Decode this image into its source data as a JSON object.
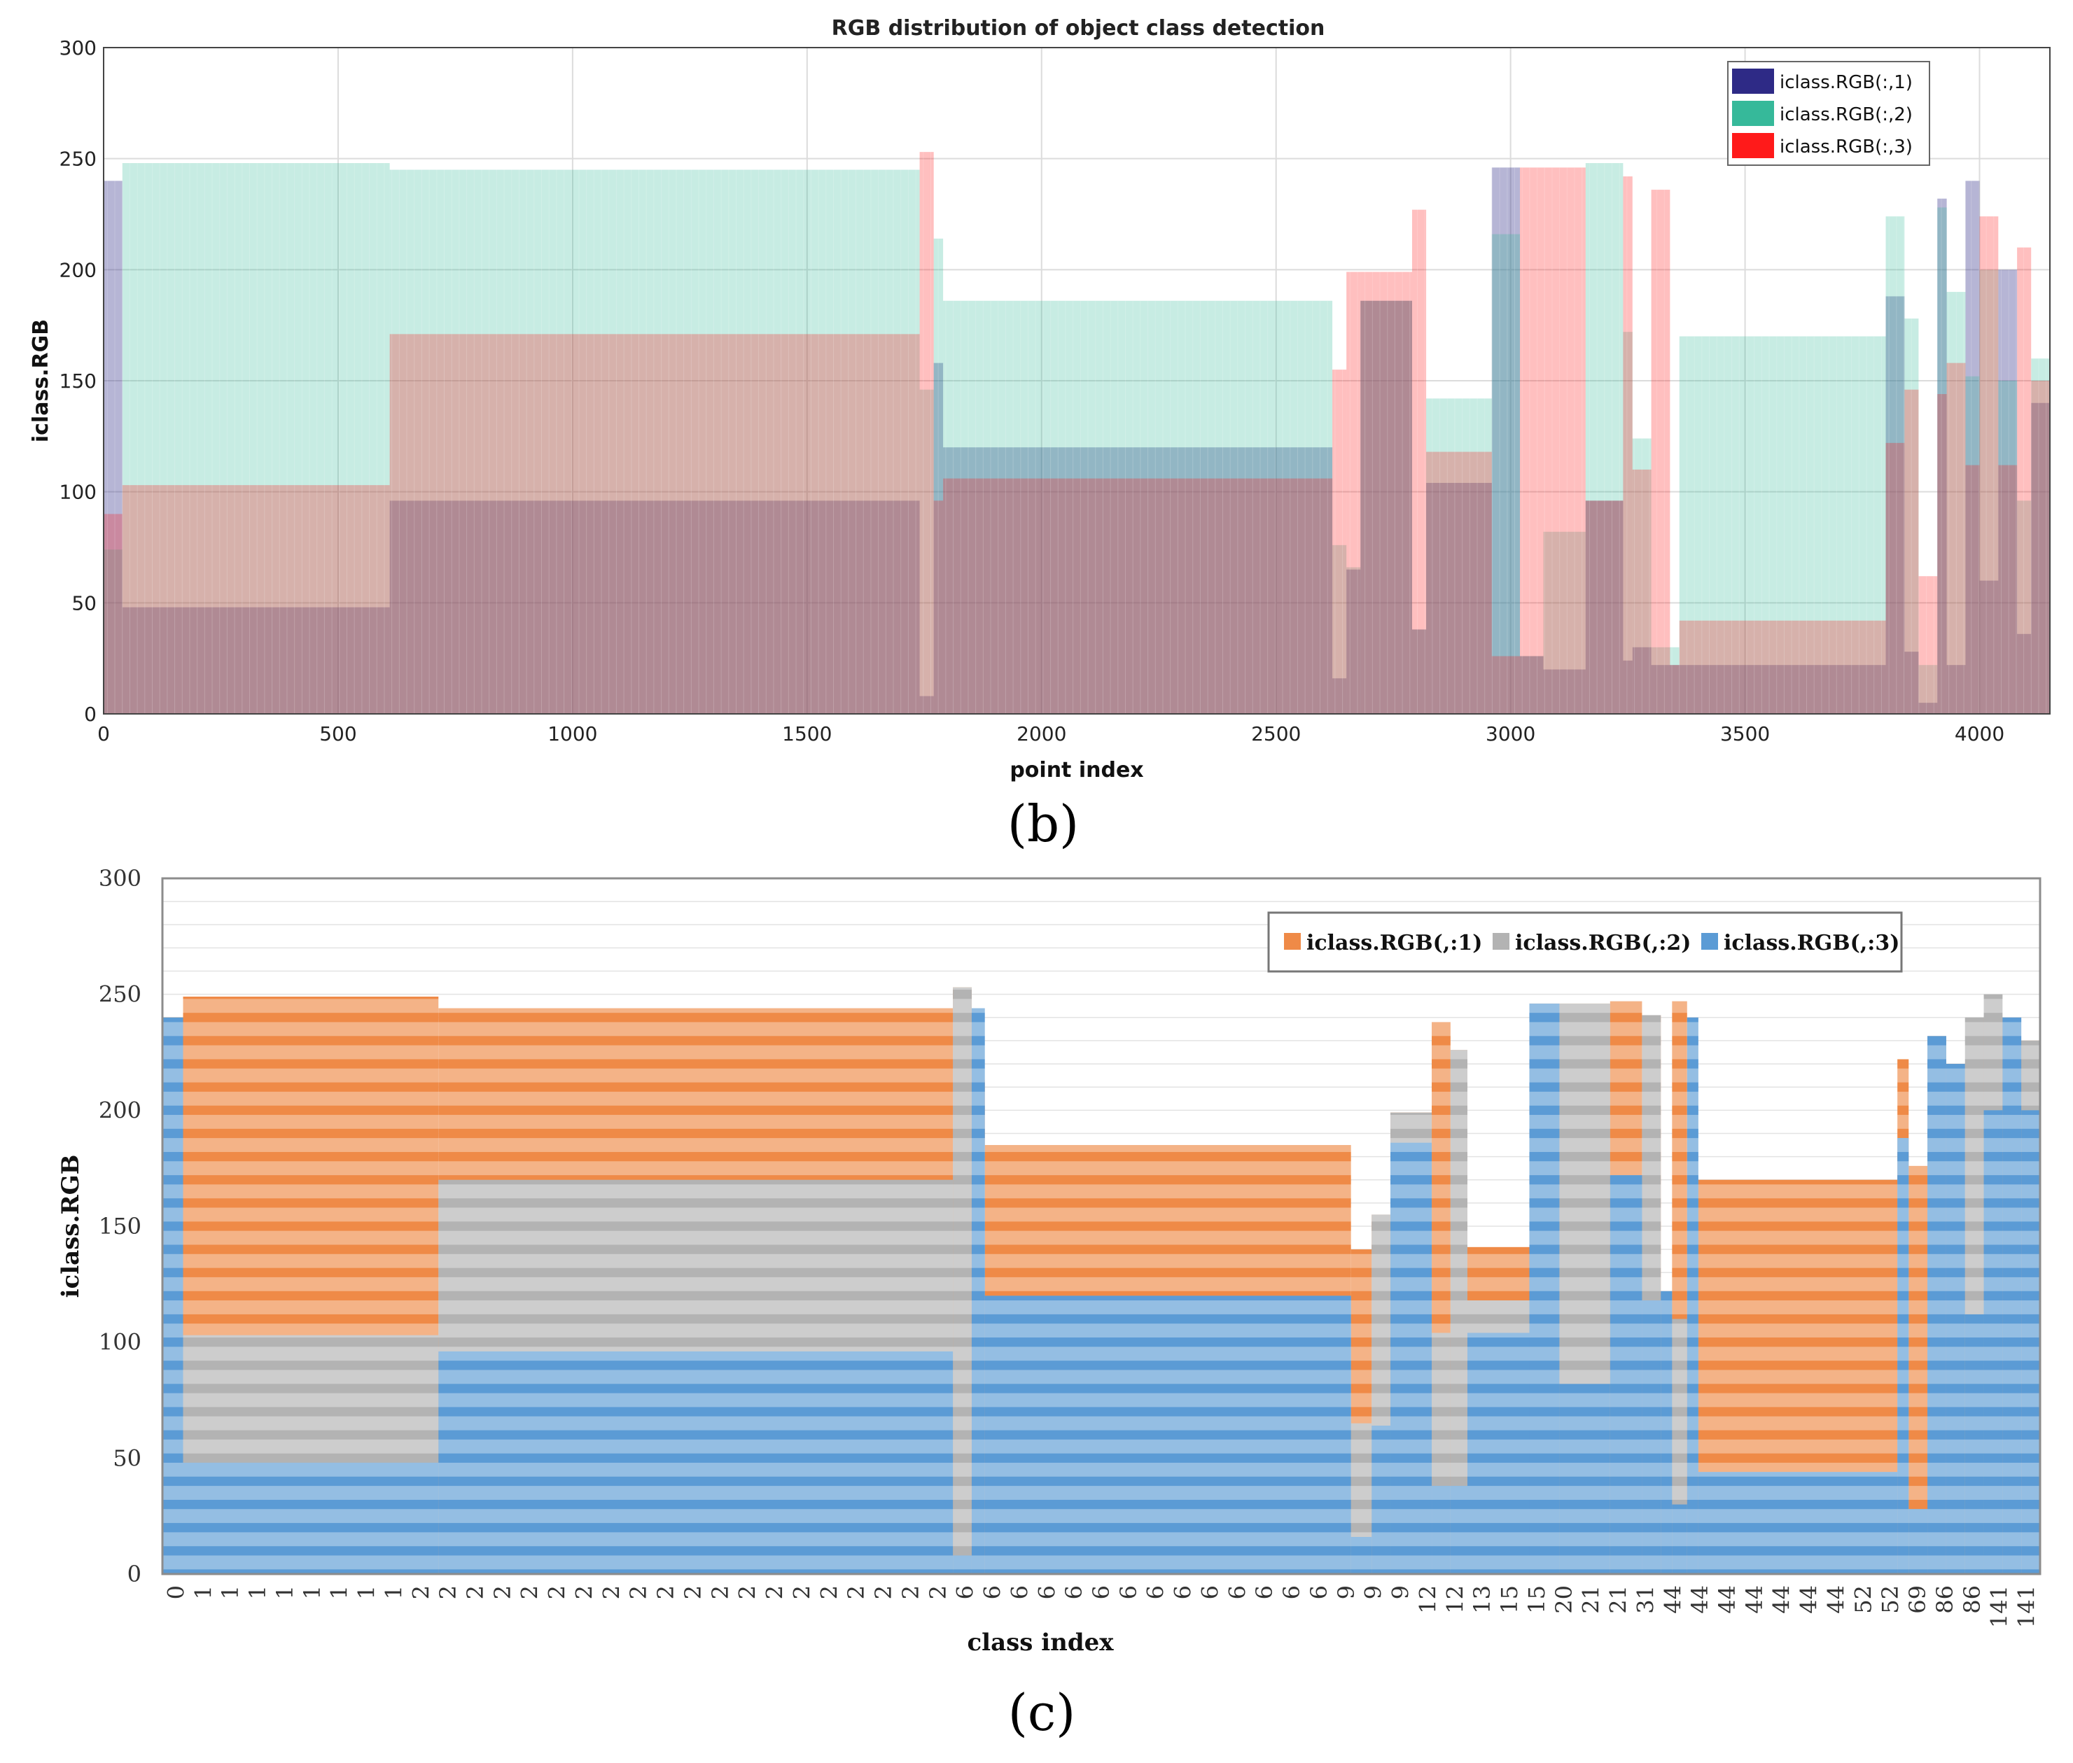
{
  "chart_data": [
    {
      "panel_label": "(b)",
      "type": "bar",
      "title": "RGB distribution of object class detection",
      "xlabel": "point index",
      "ylabel": "iclass.RGB",
      "xlim": [
        0,
        4150
      ],
      "ylim": [
        0,
        300
      ],
      "xticks": [
        0,
        500,
        1000,
        1500,
        2000,
        2500,
        3000,
        3500,
        4000
      ],
      "yticks": [
        0,
        50,
        100,
        150,
        200,
        250,
        300
      ],
      "grid": true,
      "legend_position": "top-right",
      "series": [
        {
          "name": "iclass.RGB(:,1)",
          "color": "#2e2a86",
          "segments": [
            [
              0,
              40,
              240
            ],
            [
              40,
              610,
              48
            ],
            [
              610,
              1740,
              96
            ],
            [
              1740,
              1770,
              8
            ],
            [
              1770,
              1790,
              158
            ],
            [
              1790,
              2620,
              120
            ],
            [
              2620,
              2650,
              16
            ],
            [
              2650,
              2680,
              65
            ],
            [
              2680,
              2790,
              186
            ],
            [
              2790,
              2820,
              38
            ],
            [
              2820,
              2880,
              104
            ],
            [
              2880,
              2960,
              104
            ],
            [
              2960,
              3020,
              246
            ],
            [
              3020,
              3070,
              26
            ],
            [
              3070,
              3160,
              20
            ],
            [
              3160,
              3240,
              96
            ],
            [
              3240,
              3260,
              24
            ],
            [
              3260,
              3300,
              30
            ],
            [
              3300,
              3340,
              22
            ],
            [
              3340,
              3360,
              22
            ],
            [
              3360,
              3800,
              22
            ],
            [
              3800,
              3840,
              188
            ],
            [
              3840,
              3870,
              28
            ],
            [
              3870,
              3910,
              5
            ],
            [
              3910,
              3930,
              232
            ],
            [
              3930,
              3970,
              22
            ],
            [
              3970,
              4000,
              240
            ],
            [
              4000,
              4040,
              60
            ],
            [
              4040,
              4080,
              200
            ],
            [
              4080,
              4110,
              36
            ],
            [
              4110,
              4150,
              140
            ]
          ]
        },
        {
          "name": "iclass.RGB(:,2)",
          "color": "#36b99a",
          "segments": [
            [
              0,
              40,
              74
            ],
            [
              40,
              610,
              248
            ],
            [
              610,
              1740,
              245
            ],
            [
              1740,
              1770,
              146
            ],
            [
              1770,
              1790,
              214
            ],
            [
              1790,
              2620,
              186
            ],
            [
              2620,
              2650,
              76
            ],
            [
              2650,
              2680,
              66
            ],
            [
              2680,
              2790,
              186
            ],
            [
              2790,
              2820,
              38
            ],
            [
              2820,
              2880,
              142
            ],
            [
              2880,
              2960,
              142
            ],
            [
              2960,
              3020,
              216
            ],
            [
              3020,
              3070,
              26
            ],
            [
              3070,
              3160,
              82
            ],
            [
              3160,
              3240,
              248
            ],
            [
              3240,
              3260,
              172
            ],
            [
              3260,
              3300,
              124
            ],
            [
              3300,
              3340,
              30
            ],
            [
              3340,
              3360,
              30
            ],
            [
              3360,
              3800,
              170
            ],
            [
              3800,
              3840,
              224
            ],
            [
              3840,
              3870,
              178
            ],
            [
              3870,
              3910,
              22
            ],
            [
              3910,
              3930,
              228
            ],
            [
              3930,
              3970,
              190
            ],
            [
              3970,
              4000,
              152
            ],
            [
              4000,
              4040,
              200
            ],
            [
              4040,
              4080,
              150
            ],
            [
              4080,
              4110,
              96
            ],
            [
              4110,
              4150,
              160
            ]
          ]
        },
        {
          "name": "iclass.RGB(:,3)",
          "color": "#ff1a1a",
          "segments": [
            [
              0,
              40,
              90
            ],
            [
              40,
              610,
              103
            ],
            [
              610,
              1740,
              171
            ],
            [
              1740,
              1770,
              253
            ],
            [
              1770,
              1790,
              96
            ],
            [
              1790,
              2620,
              106
            ],
            [
              2620,
              2650,
              155
            ],
            [
              2650,
              2680,
              199
            ],
            [
              2680,
              2790,
              199
            ],
            [
              2790,
              2820,
              227
            ],
            [
              2820,
              2880,
              118
            ],
            [
              2880,
              2960,
              118
            ],
            [
              2960,
              3020,
              26
            ],
            [
              3020,
              3070,
              246
            ],
            [
              3070,
              3160,
              246
            ],
            [
              3160,
              3240,
              96
            ],
            [
              3240,
              3260,
              242
            ],
            [
              3260,
              3300,
              110
            ],
            [
              3300,
              3340,
              236
            ],
            [
              3340,
              3360,
              22
            ],
            [
              3360,
              3800,
              42
            ],
            [
              3800,
              3840,
              122
            ],
            [
              3840,
              3870,
              146
            ],
            [
              3870,
              3910,
              62
            ],
            [
              3910,
              3930,
              144
            ],
            [
              3930,
              3970,
              158
            ],
            [
              3970,
              4000,
              112
            ],
            [
              4000,
              4040,
              224
            ],
            [
              4040,
              4080,
              112
            ],
            [
              4080,
              4110,
              210
            ],
            [
              4110,
              4150,
              150
            ]
          ]
        }
      ]
    },
    {
      "panel_label": "(c)",
      "type": "bar",
      "title": "",
      "xlabel": "class index",
      "ylabel": "iclass.RGB",
      "ylim": [
        0,
        300
      ],
      "yticks": [
        0,
        50,
        100,
        150,
        200,
        250,
        300
      ],
      "grid": true,
      "legend_position": "top-right",
      "categories": [
        "0",
        "1",
        "1",
        "1",
        "1",
        "1",
        "1",
        "1",
        "1",
        "2",
        "2",
        "2",
        "2",
        "2",
        "2",
        "2",
        "2",
        "2",
        "2",
        "2",
        "2",
        "2",
        "2",
        "2",
        "2",
        "2",
        "2",
        "2",
        "2",
        "6",
        "6",
        "6",
        "6",
        "6",
        "6",
        "6",
        "6",
        "6",
        "6",
        "6",
        "6",
        "6",
        "6",
        "9",
        "9",
        "9",
        "12",
        "12",
        "13",
        "15",
        "15",
        "20",
        "21",
        "21",
        "31",
        "44",
        "44",
        "44",
        "44",
        "44",
        "44",
        "44",
        "52",
        "52",
        "69",
        "86",
        "86",
        "141",
        "141"
      ],
      "series": [
        {
          "name": "iclass.RGB(,:1)",
          "color": "#ef8a47",
          "segments": [
            [
              0,
              0.011,
              240
            ],
            [
              0.011,
              0.147,
              249
            ],
            [
              0.147,
              0.421,
              244
            ],
            [
              0.421,
              0.431,
              253
            ],
            [
              0.431,
              0.438,
              213
            ],
            [
              0.438,
              0.633,
              185
            ],
            [
              0.633,
              0.644,
              140
            ],
            [
              0.644,
              0.654,
              155
            ],
            [
              0.654,
              0.676,
              199
            ],
            [
              0.676,
              0.686,
              238
            ],
            [
              0.686,
              0.695,
              226
            ],
            [
              0.695,
              0.728,
              141
            ],
            [
              0.728,
              0.744,
              246
            ],
            [
              0.744,
              0.771,
              246
            ],
            [
              0.771,
              0.788,
              247
            ],
            [
              0.788,
              0.798,
              241
            ],
            [
              0.798,
              0.804,
              122
            ],
            [
              0.804,
              0.812,
              247
            ],
            [
              0.812,
              0.818,
              170
            ],
            [
              0.818,
              0.924,
              170
            ],
            [
              0.924,
              0.93,
              222
            ],
            [
              0.93,
              0.94,
              176
            ],
            [
              0.94,
              0.95,
              232
            ],
            [
              0.95,
              0.96,
              220
            ],
            [
              0.96,
              0.97,
              120
            ],
            [
              0.97,
              0.98,
              240
            ],
            [
              0.98,
              0.99,
              230
            ],
            [
              0.99,
              1.0,
              230
            ]
          ]
        },
        {
          "name": "iclass.RGB(,:2)",
          "color": "#b3b3b3",
          "segments": [
            [
              0,
              0.011,
              74
            ],
            [
              0.011,
              0.147,
              103
            ],
            [
              0.147,
              0.421,
              170
            ],
            [
              0.421,
              0.431,
              253
            ],
            [
              0.431,
              0.438,
              158
            ],
            [
              0.438,
              0.633,
              120
            ],
            [
              0.633,
              0.644,
              65
            ],
            [
              0.644,
              0.654,
              155
            ],
            [
              0.654,
              0.676,
              199
            ],
            [
              0.676,
              0.686,
              104
            ],
            [
              0.686,
              0.695,
              226
            ],
            [
              0.695,
              0.728,
              118
            ],
            [
              0.728,
              0.744,
              246
            ],
            [
              0.744,
              0.771,
              246
            ],
            [
              0.771,
              0.788,
              172
            ],
            [
              0.788,
              0.798,
              241
            ],
            [
              0.798,
              0.804,
              122
            ],
            [
              0.804,
              0.812,
              110
            ],
            [
              0.812,
              0.818,
              30
            ],
            [
              0.818,
              0.924,
              44
            ],
            [
              0.924,
              0.93,
              188
            ],
            [
              0.93,
              0.94,
              28
            ],
            [
              0.94,
              0.95,
              232
            ],
            [
              0.95,
              0.96,
              156
            ],
            [
              0.96,
              0.97,
              240
            ],
            [
              0.97,
              0.98,
              250
            ],
            [
              0.98,
              0.99,
              160
            ],
            [
              0.99,
              1.0,
              230
            ]
          ]
        },
        {
          "name": "iclass.RGB(,:3)",
          "color": "#5b9bd5",
          "segments": [
            [
              0,
              0.011,
              240
            ],
            [
              0.011,
              0.147,
              48
            ],
            [
              0.147,
              0.421,
              96
            ],
            [
              0.421,
              0.431,
              8
            ],
            [
              0.431,
              0.438,
              244
            ],
            [
              0.438,
              0.633,
              120
            ],
            [
              0.633,
              0.644,
              16
            ],
            [
              0.644,
              0.654,
              64
            ],
            [
              0.654,
              0.676,
              186
            ],
            [
              0.676,
              0.686,
              38
            ],
            [
              0.686,
              0.695,
              38
            ],
            [
              0.695,
              0.728,
              104
            ],
            [
              0.728,
              0.744,
              246
            ],
            [
              0.744,
              0.771,
              82
            ],
            [
              0.771,
              0.788,
              172
            ],
            [
              0.788,
              0.798,
              118
            ],
            [
              0.798,
              0.804,
              122
            ],
            [
              0.804,
              0.812,
              30
            ],
            [
              0.812,
              0.818,
              240
            ],
            [
              0.818,
              0.924,
              44
            ],
            [
              0.924,
              0.93,
              188
            ],
            [
              0.93,
              0.94,
              28
            ],
            [
              0.94,
              0.95,
              232
            ],
            [
              0.95,
              0.96,
              220
            ],
            [
              0.96,
              0.97,
              112
            ],
            [
              0.97,
              0.98,
              200
            ],
            [
              0.98,
              0.99,
              240
            ],
            [
              0.99,
              1.0,
              200
            ]
          ]
        }
      ]
    }
  ]
}
